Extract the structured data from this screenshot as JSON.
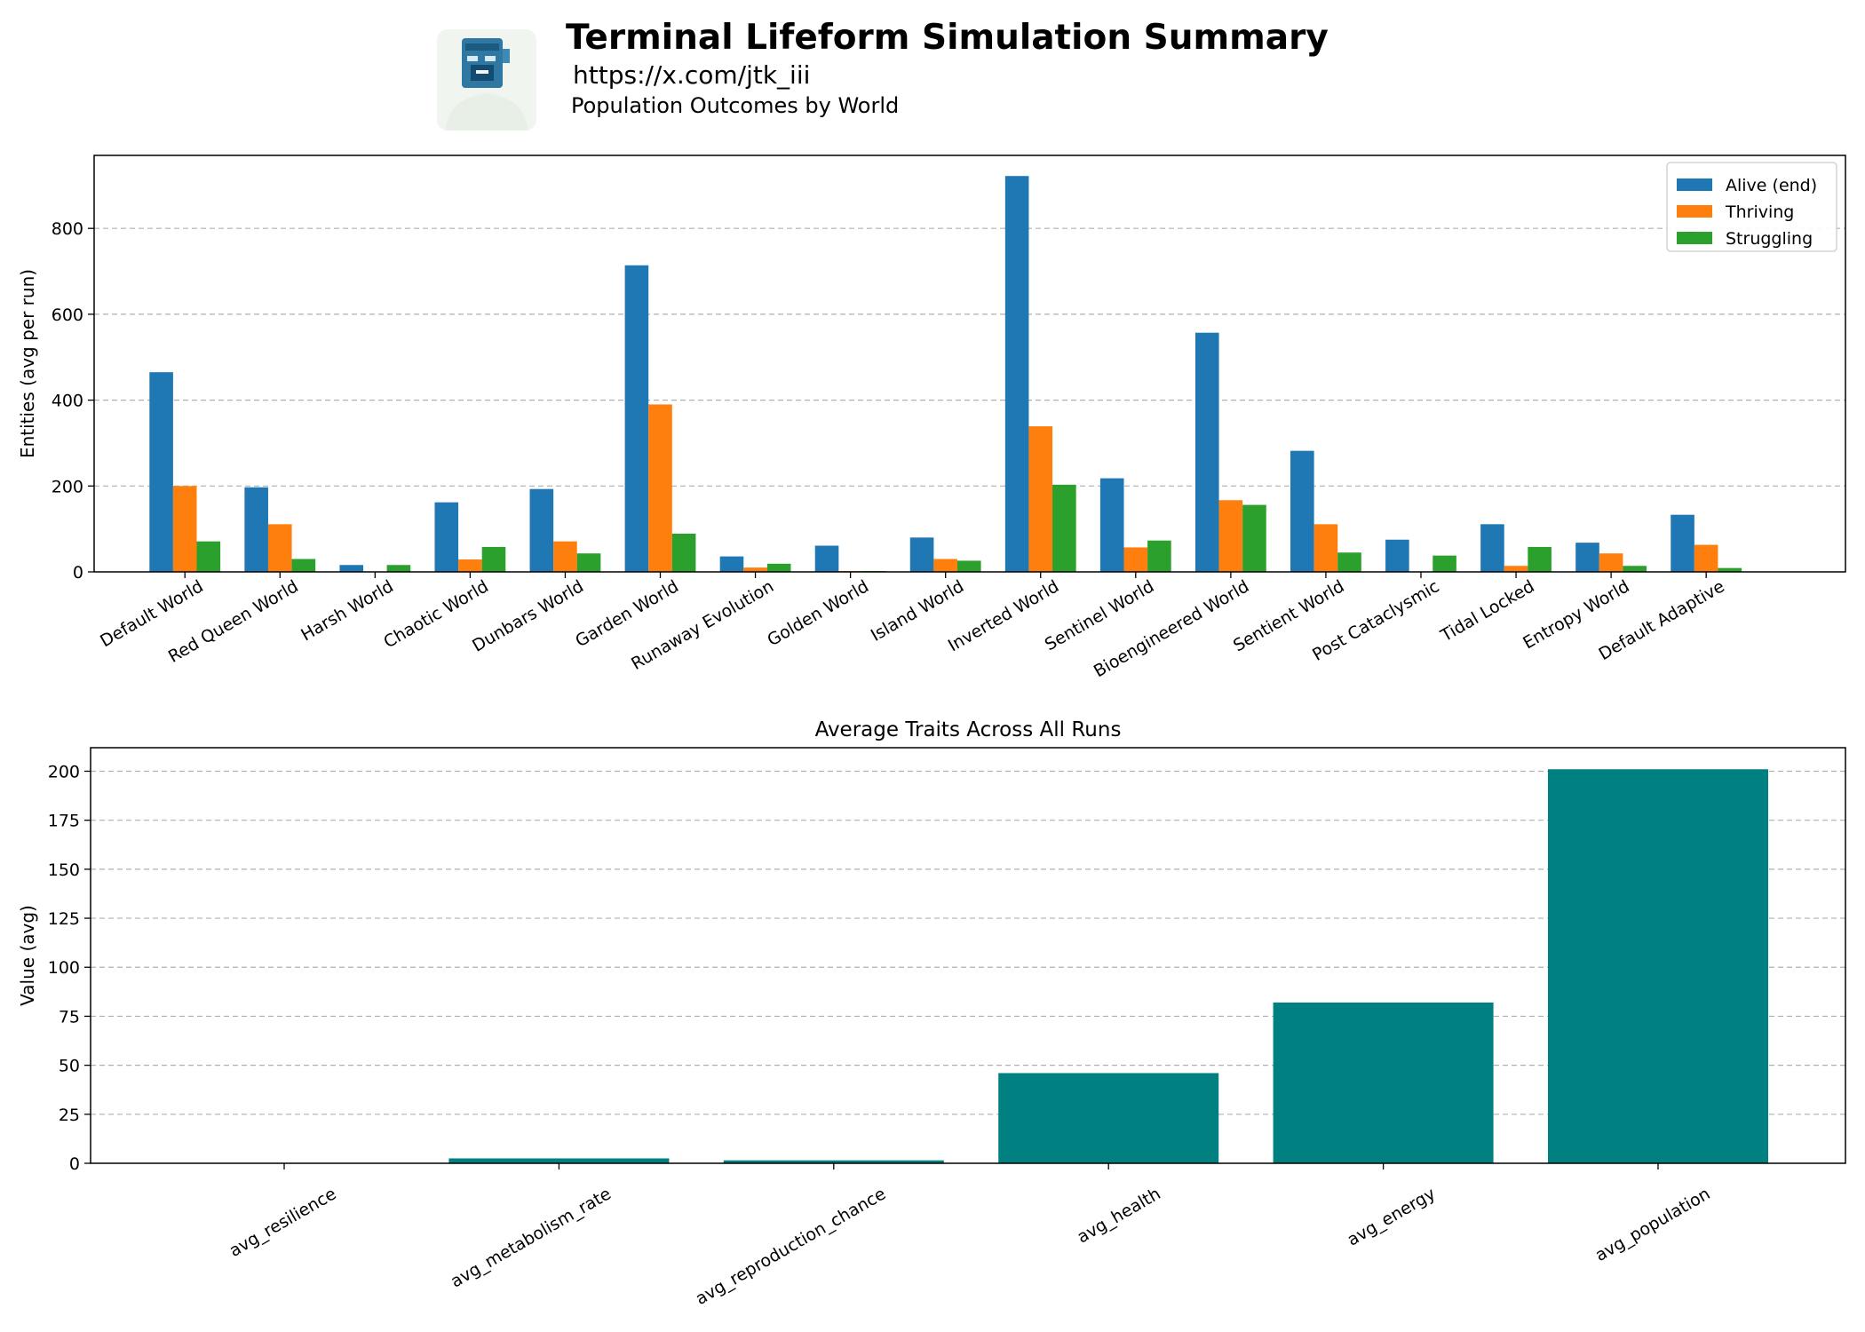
{
  "header": {
    "title": "Terminal Lifeform Simulation Summary",
    "url": "https://x.com/jtk_iii",
    "subtitle": "Population Outcomes by World"
  },
  "colors": {
    "alive": "#1f77b4",
    "thriving": "#ff7f0e",
    "struggling": "#2ca02c",
    "traits": "#008080"
  },
  "chart_data": [
    {
      "type": "bar",
      "title": "",
      "xlabel": "",
      "ylabel": "Entities (avg per run)",
      "ylim": [
        0,
        970
      ],
      "yticks": [
        0,
        200,
        400,
        600,
        800
      ],
      "grid": "y dashed",
      "legend": "top-right",
      "categories": [
        "Default World",
        "Red Queen World",
        "Harsh World",
        "Chaotic World",
        "Dunbars World",
        "Garden World",
        "Runaway Evolution",
        "Golden World",
        "Island World",
        "Inverted World",
        "Sentinel World",
        "Bioengineered World",
        "Sentient World",
        "Post Cataclysmic",
        "Tidal Locked",
        "Entropy World",
        "Default Adaptive"
      ],
      "series": [
        {
          "name": "Alive (end)",
          "values": [
            465,
            197,
            16,
            162,
            193,
            714,
            36,
            61,
            80,
            922,
            218,
            557,
            282,
            75,
            111,
            68,
            133
          ]
        },
        {
          "name": "Thriving",
          "values": [
            200,
            111,
            0,
            29,
            71,
            390,
            10,
            2,
            30,
            339,
            57,
            167,
            111,
            0,
            14,
            43,
            63
          ]
        },
        {
          "name": "Struggling",
          "values": [
            71,
            30,
            16,
            58,
            43,
            89,
            19,
            2,
            26,
            203,
            73,
            156,
            45,
            38,
            58,
            14,
            9
          ]
        }
      ]
    },
    {
      "type": "bar",
      "title": "Average Traits Across All Runs",
      "xlabel": "",
      "ylabel": "Value (avg)",
      "ylim": [
        0,
        212
      ],
      "yticks": [
        0,
        25,
        50,
        75,
        100,
        125,
        150,
        175,
        200
      ],
      "grid": "y dashed",
      "categories": [
        "avg_resilience",
        "avg_metabolism_rate",
        "avg_reproduction_chance",
        "avg_health",
        "avg_energy",
        "avg_population"
      ],
      "values": [
        0.2,
        2.5,
        1.5,
        46,
        82,
        201
      ]
    }
  ]
}
